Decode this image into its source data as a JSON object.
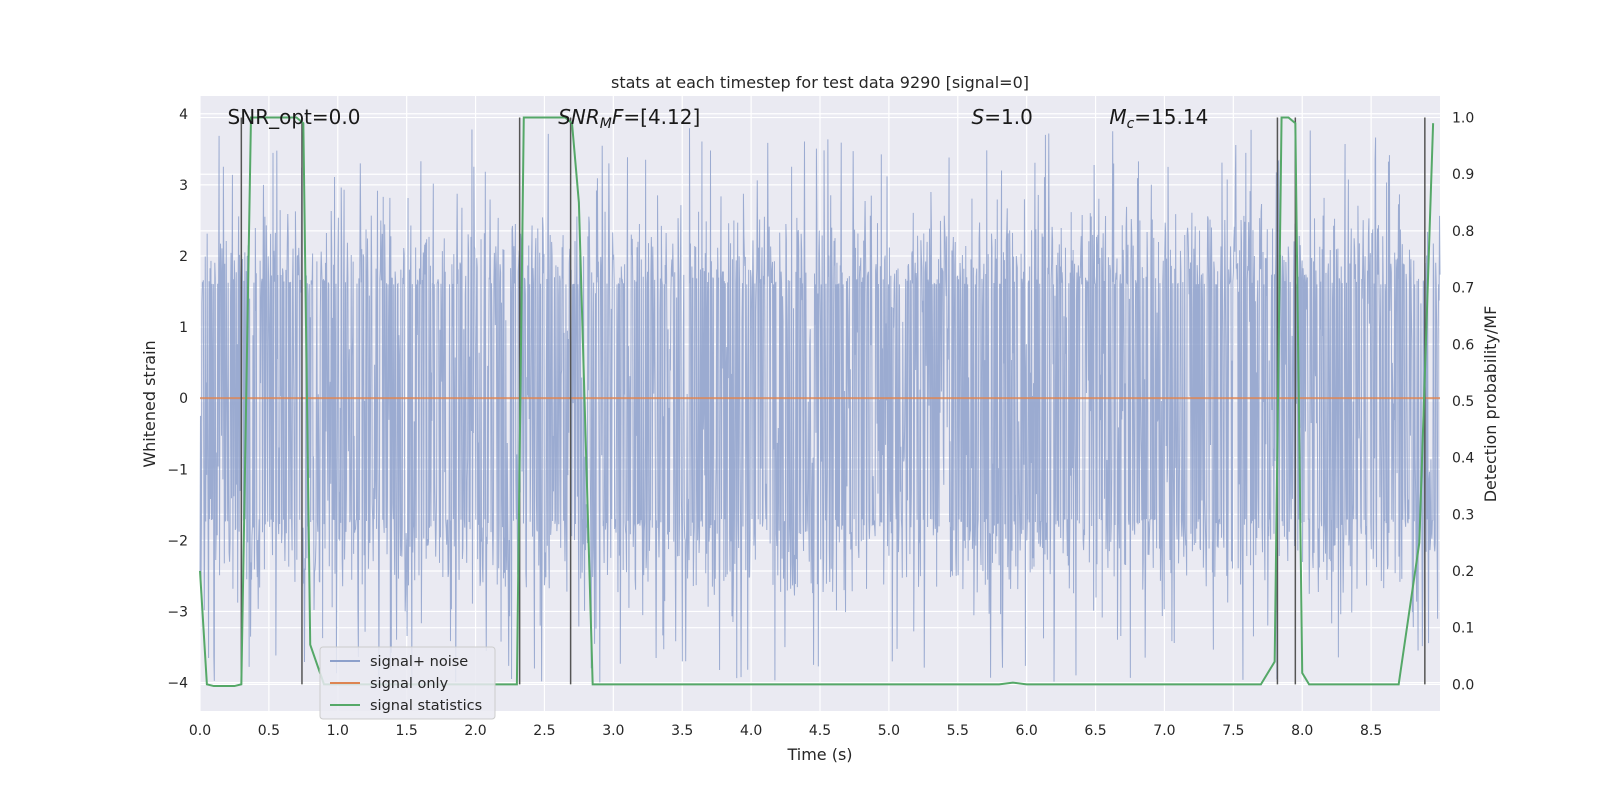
{
  "chart_data": {
    "type": "line",
    "title": "stats at each timestep for test data 9290 [signal=0]",
    "xlabel": "Time (s)",
    "ylabel": "Whitened strain",
    "y2label": "Detection probability/MF",
    "xlim": [
      0.0,
      9.0
    ],
    "ylim": [
      -4.4,
      4.25
    ],
    "y2lim": [
      -0.047,
      1.038
    ],
    "x_ticks": [
      "0.0",
      "0.5",
      "1.0",
      "1.5",
      "2.0",
      "2.5",
      "3.0",
      "3.5",
      "4.0",
      "4.5",
      "5.0",
      "5.5",
      "6.0",
      "6.5",
      "7.0",
      "7.5",
      "8.0",
      "8.5"
    ],
    "x_tick_values": [
      0.0,
      0.5,
      1.0,
      1.5,
      2.0,
      2.5,
      3.0,
      3.5,
      4.0,
      4.5,
      5.0,
      5.5,
      6.0,
      6.5,
      7.0,
      7.5,
      8.0,
      8.5
    ],
    "y_ticks": [
      "−4",
      "−3",
      "−2",
      "−1",
      "0",
      "1",
      "2",
      "3",
      "4"
    ],
    "y_tick_values": [
      -4,
      -3,
      -2,
      -1,
      0,
      1,
      2,
      3,
      4
    ],
    "y2_ticks": [
      "0.0",
      "0.1",
      "0.2",
      "0.3",
      "0.4",
      "0.5",
      "0.6",
      "0.7",
      "0.8",
      "0.9",
      "1.0"
    ],
    "y2_tick_values": [
      0.0,
      0.1,
      0.2,
      0.3,
      0.4,
      0.5,
      0.6,
      0.7,
      0.8,
      0.9,
      1.0
    ],
    "grid": true,
    "legend_position": "lower-left",
    "annotations": [
      {
        "id": "snr-opt",
        "text": "SNR_opt=0.0",
        "x": 0.2
      },
      {
        "id": "snr-mf",
        "text": "SNR_MF=[4.12]",
        "x": 2.6
      },
      {
        "id": "s-stat",
        "text": "S=1.0",
        "x": 5.6
      },
      {
        "id": "mc",
        "text": "M_c=15.14",
        "x": 6.6
      }
    ],
    "series": [
      {
        "name": "signal+ noise",
        "color": "#8da0cb",
        "description_range": {
          "typical_min": -1.7,
          "typical_max": 1.6,
          "extreme_min": -4.0,
          "extreme_max": 3.8
        }
      },
      {
        "name": "signal only",
        "color": "#dd8452",
        "x": [
          0.0,
          9.0
        ],
        "y": [
          0.0,
          0.0
        ]
      },
      {
        "name": "signal statistics",
        "color": "#55a868",
        "axis": "right",
        "x": [
          0.0,
          0.05,
          0.1,
          0.25,
          0.3,
          0.37,
          0.7,
          0.75,
          0.8,
          0.9,
          2.2,
          2.3,
          2.35,
          2.65,
          2.7,
          2.75,
          2.85,
          2.95,
          5.8,
          5.9,
          6.0,
          7.7,
          7.8,
          7.85,
          7.9,
          7.95,
          8.0,
          8.05,
          8.1,
          8.3,
          8.5,
          8.7,
          8.85,
          8.95
        ],
        "y": [
          0.2,
          0.0,
          -0.003,
          -0.003,
          0.0,
          1.0,
          1.0,
          0.99,
          0.07,
          0.0,
          0.0,
          0.0,
          1.0,
          1.0,
          0.99,
          0.85,
          0.0,
          0.0,
          0.0,
          0.003,
          0.0,
          0.0,
          0.04,
          1.0,
          1.0,
          0.99,
          0.02,
          0.0,
          0.0,
          0.0,
          0.0,
          0.0,
          0.25,
          0.99
        ]
      }
    ],
    "vertical_markers_x": [
      0.3,
      0.74,
      2.32,
      2.69,
      7.82,
      7.95,
      8.89
    ]
  }
}
